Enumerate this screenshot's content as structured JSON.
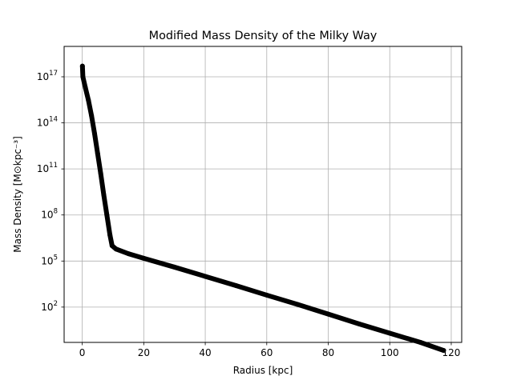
{
  "chart_data": {
    "type": "scatter",
    "title": "Modified Mass Density of the Milky Way",
    "xlabel": "Radius [kpc]",
    "ylabel": "Mass Density [M⊙kpc⁻³]",
    "yscale": "log",
    "xlim": [
      -5.9,
      123.4
    ],
    "ylim_log10": [
      -0.3,
      18.98
    ],
    "x_ticks": [
      {
        "value": 0,
        "label": "0"
      },
      {
        "value": 20,
        "label": "20"
      },
      {
        "value": 40,
        "label": "40"
      },
      {
        "value": 60,
        "label": "60"
      },
      {
        "value": 80,
        "label": "80"
      },
      {
        "value": 100,
        "label": "100"
      },
      {
        "value": 120,
        "label": "120"
      }
    ],
    "y_ticks": [
      {
        "log10": 2,
        "base": "10",
        "exp": "2"
      },
      {
        "log10": 5,
        "base": "10",
        "exp": "5"
      },
      {
        "log10": 8,
        "base": "10",
        "exp": "8"
      },
      {
        "log10": 11,
        "base": "10",
        "exp": "11"
      },
      {
        "log10": 14,
        "base": "10",
        "exp": "14"
      },
      {
        "log10": 17,
        "base": "10",
        "exp": "17"
      }
    ],
    "grid": true,
    "series": [
      {
        "color": "#000000",
        "points": [
          {
            "x": 0.05,
            "y": "5e17"
          },
          {
            "x": 0.2,
            "y": "1e17"
          },
          {
            "x": 1,
            "y": "2e16"
          },
          {
            "x": 2,
            "y": "3e15"
          },
          {
            "x": 3,
            "y": "3e14"
          },
          {
            "x": 4,
            "y": "2e13"
          },
          {
            "x": 5,
            "y": "1e12"
          },
          {
            "x": 6,
            "y": "5e10"
          },
          {
            "x": 7,
            "y": "2e9"
          },
          {
            "x": 8,
            "y": "1e8"
          },
          {
            "x": 9,
            "y": "5e6"
          },
          {
            "x": 9.7,
            "y": "1e6"
          },
          {
            "x": 11,
            "y": "6e5"
          },
          {
            "x": 15,
            "y": "3e5"
          },
          {
            "x": 20,
            "y": "1.5e5"
          },
          {
            "x": 30,
            "y": "4e4"
          },
          {
            "x": 40,
            "y": "1e4"
          },
          {
            "x": 50,
            "y": "2.5e3"
          },
          {
            "x": 60,
            "y": "6e2"
          },
          {
            "x": 70,
            "y": "1.5e2"
          },
          {
            "x": 80,
            "y": "35"
          },
          {
            "x": 90,
            "y": "8"
          },
          {
            "x": 100,
            "y": "2"
          },
          {
            "x": 110,
            "y": "0.5"
          },
          {
            "x": 117.5,
            "y": "0.15"
          }
        ]
      }
    ]
  }
}
